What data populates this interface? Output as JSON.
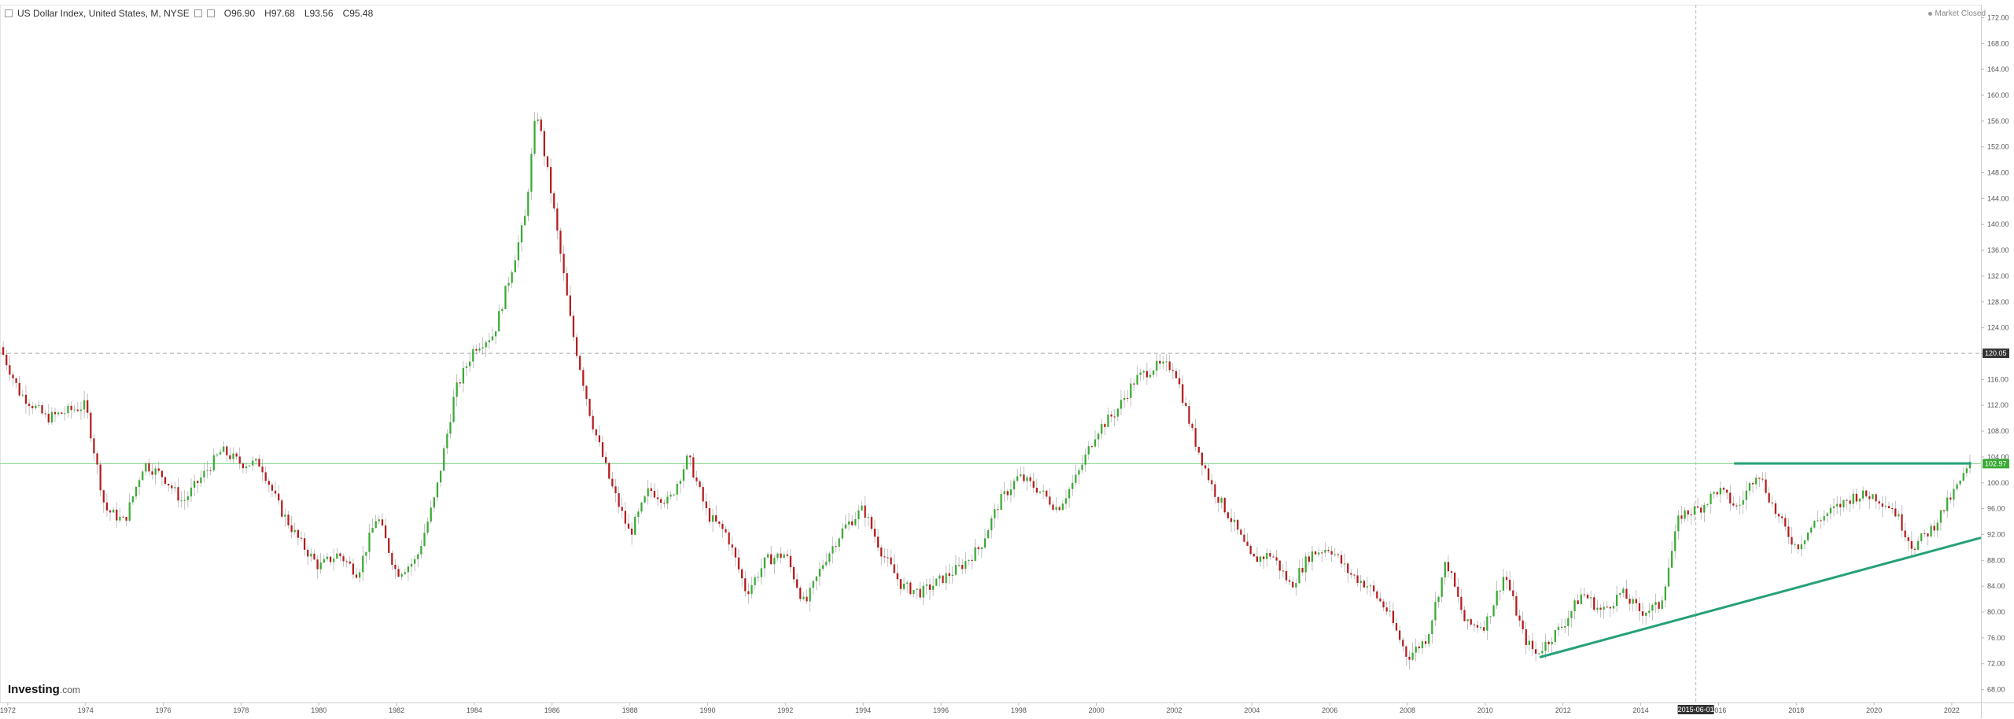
{
  "header": {
    "title": "US Dollar Index, United States, M, NYSE",
    "o_label": "O",
    "o_value": "96.90",
    "h_label": "H",
    "h_value": "97.68",
    "l_label": "L",
    "l_value": "93.56",
    "c_label": "C",
    "c_value": "95.48"
  },
  "status": "Market Closed",
  "brand": {
    "name": "Investing",
    "suffix": ".com"
  },
  "colors": {
    "up": "#3aaa35",
    "down": "#b51c1c",
    "trendline": "#25a17a",
    "resistance": "#7fd489"
  },
  "chart_data": {
    "type": "candlestick",
    "title": "US Dollar Index, United States, M, NYSE",
    "xlim": [
      1971.8,
      2022.75
    ],
    "ylim": [
      66,
      174
    ],
    "y_ticks": [
      68,
      72,
      76,
      80,
      84,
      88,
      92,
      96,
      100,
      104,
      108,
      112,
      116,
      120,
      124,
      128,
      132,
      136,
      140,
      144,
      148,
      152,
      156,
      160,
      164,
      168,
      172
    ],
    "x_ticks": [
      "1972",
      "1974",
      "1976",
      "1978",
      "1980",
      "1982",
      "1984",
      "1986",
      "1988",
      "1990",
      "1992",
      "1994",
      "1996",
      "1998",
      "2000",
      "2002",
      "2004",
      "2006",
      "2008",
      "2010",
      "2012",
      "2014",
      "2016",
      "2018",
      "2020",
      "2022"
    ],
    "price_labels": [
      {
        "value": 120.05,
        "label": "120.05",
        "style": "dark"
      },
      {
        "value": 102.97,
        "label": "102.97",
        "style": "green"
      }
    ],
    "crosshair": {
      "x": 2015.417,
      "label": "2015-06-01"
    },
    "path_points": [
      [
        1971.8,
        121
      ],
      [
        1972.3,
        114
      ],
      [
        1973,
        110
      ],
      [
        1974,
        112
      ],
      [
        1974.5,
        96
      ],
      [
        1975,
        94
      ],
      [
        1975.5,
        103
      ],
      [
        1976,
        101
      ],
      [
        1976.5,
        97
      ],
      [
        1977,
        101
      ],
      [
        1977.5,
        105
      ],
      [
        1978,
        103
      ],
      [
        1978.5,
        103
      ],
      [
        1979,
        96
      ],
      [
        1979.5,
        91
      ],
      [
        1980,
        87
      ],
      [
        1980.5,
        89
      ],
      [
        1981,
        86
      ],
      [
        1981.5,
        95
      ],
      [
        1982,
        86
      ],
      [
        1982.5,
        88
      ],
      [
        1983,
        98
      ],
      [
        1983.5,
        114
      ],
      [
        1984,
        121
      ],
      [
        1984.5,
        123
      ],
      [
        1985,
        134
      ],
      [
        1985.3,
        141
      ],
      [
        1985.6,
        158
      ],
      [
        1986,
        144
      ],
      [
        1986.5,
        124
      ],
      [
        1987,
        110
      ],
      [
        1987.5,
        100
      ],
      [
        1988,
        92
      ],
      [
        1988.5,
        99
      ],
      [
        1989,
        97
      ],
      [
        1989.5,
        104
      ],
      [
        1990,
        95
      ],
      [
        1990.5,
        92
      ],
      [
        1991,
        83
      ],
      [
        1991.5,
        88
      ],
      [
        1992,
        89
      ],
      [
        1992.5,
        81
      ],
      [
        1993,
        88
      ],
      [
        1993.5,
        93
      ],
      [
        1994,
        96
      ],
      [
        1994.5,
        89
      ],
      [
        1995,
        84
      ],
      [
        1995.5,
        83
      ],
      [
        1996,
        85
      ],
      [
        1996.5,
        87
      ],
      [
        1997,
        90
      ],
      [
        1997.5,
        97
      ],
      [
        1998,
        101
      ],
      [
        1998.5,
        99
      ],
      [
        1999,
        96
      ],
      [
        1999.5,
        101
      ],
      [
        2000,
        108
      ],
      [
        2000.5,
        111
      ],
      [
        2001,
        116
      ],
      [
        2001.5,
        118
      ],
      [
        2002,
        118
      ],
      [
        2002.5,
        107
      ],
      [
        2003,
        99
      ],
      [
        2003.5,
        94
      ],
      [
        2004,
        88
      ],
      [
        2004.5,
        89
      ],
      [
        2005,
        84
      ],
      [
        2005.5,
        89
      ],
      [
        2006,
        90
      ],
      [
        2006.5,
        86
      ],
      [
        2007,
        84
      ],
      [
        2007.5,
        80
      ],
      [
        2008,
        73
      ],
      [
        2008.5,
        76
      ],
      [
        2009,
        88
      ],
      [
        2009.5,
        78
      ],
      [
        2010,
        78
      ],
      [
        2010.5,
        86
      ],
      [
        2011,
        76
      ],
      [
        2011.3,
        73.5
      ],
      [
        2012,
        78
      ],
      [
        2012.5,
        83
      ],
      [
        2013,
        80
      ],
      [
        2013.5,
        83
      ],
      [
        2014,
        80
      ],
      [
        2014.5,
        81
      ],
      [
        2015,
        95
      ],
      [
        2015.5,
        96
      ],
      [
        2016,
        99
      ],
      [
        2016.5,
        96
      ],
      [
        2017,
        102
      ],
      [
        2017.5,
        95
      ],
      [
        2018,
        90
      ],
      [
        2018.5,
        94
      ],
      [
        2019,
        96
      ],
      [
        2019.5,
        98
      ],
      [
        2020,
        98
      ],
      [
        2020.5,
        96
      ],
      [
        2021,
        90
      ],
      [
        2021.5,
        93
      ],
      [
        2022,
        98
      ],
      [
        2022.5,
        103
      ]
    ],
    "annotations": [
      {
        "type": "trendline",
        "from": [
          2011.4,
          73
        ],
        "to": [
          2022.75,
          91.5
        ]
      },
      {
        "type": "horizontal",
        "from": [
          2016.4,
          103
        ],
        "to": [
          2022.5,
          103
        ]
      }
    ]
  }
}
